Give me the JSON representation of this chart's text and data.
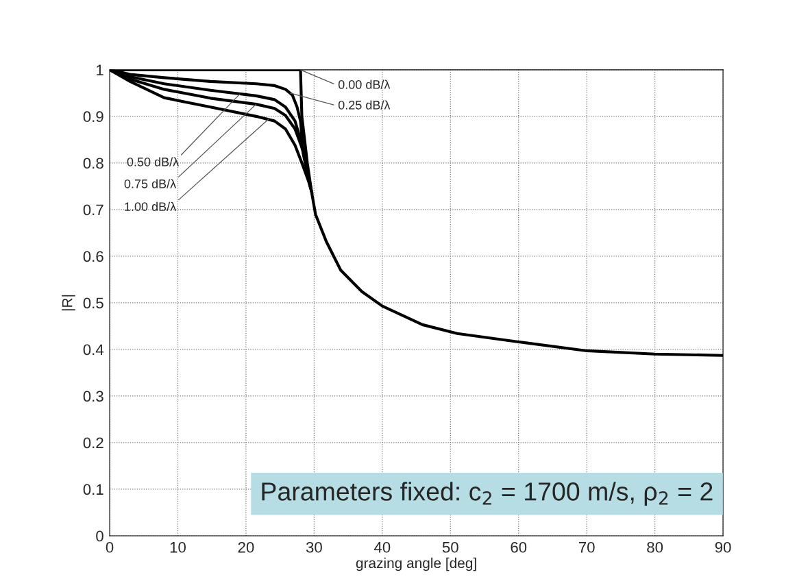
{
  "chart_data": {
    "type": "line",
    "xlabel": "grazing angle [deg]",
    "ylabel": "|R|",
    "xlim": [
      0,
      90
    ],
    "xticks": [
      0,
      10,
      20,
      30,
      40,
      50,
      60,
      70,
      80,
      90
    ],
    "ylim": [
      0,
      1
    ],
    "yticks": [
      0,
      0.1,
      0.2,
      0.3,
      0.4,
      0.5,
      0.6,
      0.7,
      0.8,
      0.9,
      1
    ],
    "grid": true,
    "line_style": "solid",
    "marker": "none",
    "series": [
      {
        "color": "#000000",
        "x": [
          0,
          10,
          20,
          28,
          28.2,
          29,
          29.6,
          30.2,
          31.8,
          33.9,
          37,
          40,
          45.9,
          51,
          60,
          70,
          80,
          90
        ],
        "values": [
          1,
          1,
          1,
          1,
          0.9,
          0.8,
          0.74,
          0.69,
          0.631,
          0.57,
          0.524,
          0.493,
          0.453,
          0.434,
          0.416,
          0.397,
          0.39,
          0.387
        ]
      },
      {
        "color": "#000000",
        "x": [
          0,
          3,
          8,
          14.8,
          21.5,
          24.2,
          25.8,
          26.8,
          27.5,
          28,
          28.4,
          29.4
        ],
        "values": [
          1,
          0.99,
          0.983,
          0.975,
          0.97,
          0.966,
          0.958,
          0.946,
          0.92,
          0.89,
          0.82,
          0.75
        ]
      },
      {
        "color": "#000000",
        "x": [
          0,
          3,
          8,
          14.8,
          21.5,
          24.2,
          25.8,
          27.2,
          28.2,
          28.9,
          29.5
        ],
        "values": [
          1,
          0.985,
          0.97,
          0.956,
          0.944,
          0.936,
          0.92,
          0.89,
          0.84,
          0.8,
          0.745
        ]
      },
      {
        "color": "#000000",
        "x": [
          0,
          3,
          8,
          14.8,
          21.5,
          24.2,
          25.8,
          27.2,
          28.2,
          29,
          29.6
        ],
        "values": [
          1,
          0.98,
          0.958,
          0.939,
          0.926,
          0.917,
          0.902,
          0.873,
          0.833,
          0.79,
          0.74
        ]
      },
      {
        "color": "#000000",
        "x": [
          0,
          3,
          8,
          14.8,
          21.5,
          24.2,
          25.8,
          27.2,
          28.2,
          29.2,
          29.7
        ],
        "values": [
          1,
          0.975,
          0.94,
          0.92,
          0.9,
          0.89,
          0.873,
          0.838,
          0.8,
          0.76,
          0.735
        ]
      }
    ],
    "annotations": [
      {
        "text": "0.00 dB/λ",
        "x": 28,
        "y": 1
      },
      {
        "text": "0.25 dB/λ",
        "x": 26.5,
        "y": 0.95
      },
      {
        "text": "0.50 dB/λ",
        "x": 19.1,
        "y": 0.948
      },
      {
        "text": "0.75 dB/λ",
        "x": 21.5,
        "y": 0.926
      },
      {
        "text": "1.00 dB/λ",
        "x": 23.3,
        "y": 0.894
      },
      "Parameters fixed: c$_{2}$ = 1700 m/s, ρ$_{2}$ = 2"
    ]
  }
}
